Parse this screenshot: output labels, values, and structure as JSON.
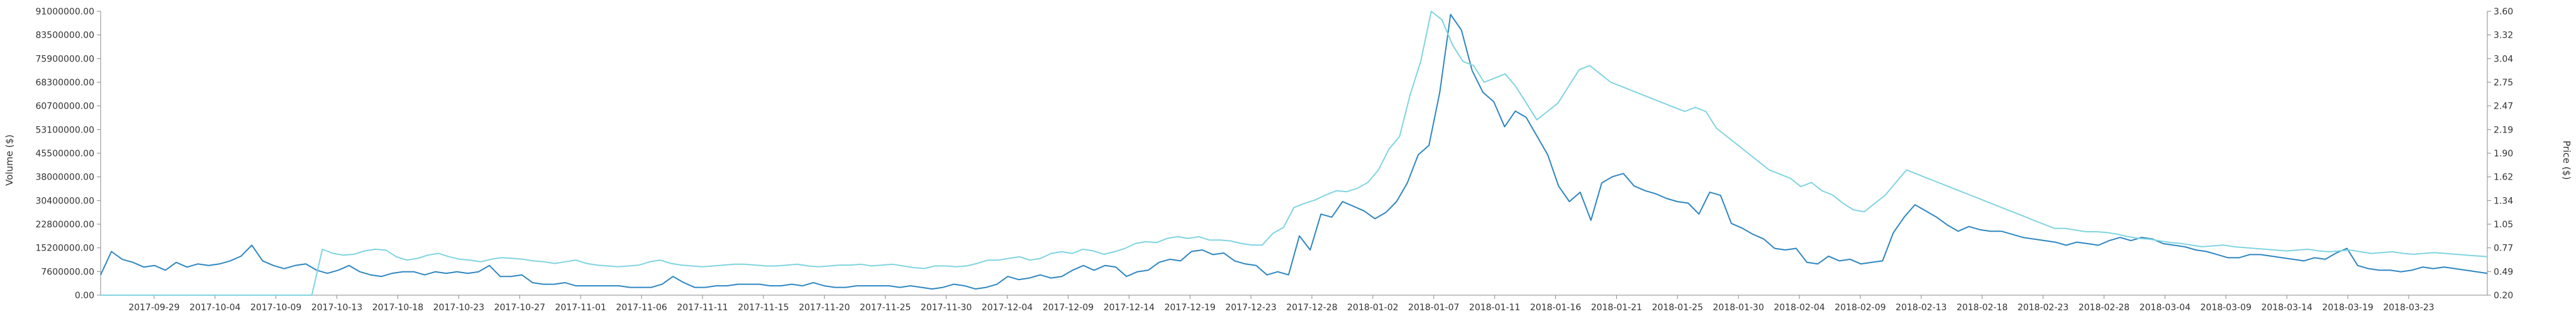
{
  "chart_data": {
    "type": "line",
    "title": "",
    "ylabel_left": "Volume ($)",
    "ylabel_right": "Price ($)",
    "y_left_ticks": [
      "0.00",
      "7600000.00",
      "15200000.00",
      "22800000.00",
      "30400000.00",
      "38000000.00",
      "45500000.00",
      "53100000.00",
      "60700000.00",
      "68300000.00",
      "75900000.00",
      "83500000.00",
      "91000000.00"
    ],
    "y_left_range": [
      0,
      91000000
    ],
    "y_right_ticks": [
      "0.20",
      "0.49",
      "0.77",
      "1.05",
      "1.34",
      "1.62",
      "1.90",
      "2.19",
      "2.47",
      "2.75",
      "3.04",
      "3.32",
      "3.60"
    ],
    "y_right_range": [
      0.2,
      3.6
    ],
    "x_tick_labels": [
      "2017-09-29",
      "2017-10-04",
      "2017-10-09",
      "2017-10-13",
      "2017-10-18",
      "2017-10-23",
      "2017-10-27",
      "2017-11-01",
      "2017-11-06",
      "2017-11-11",
      "2017-11-15",
      "2017-11-20",
      "2017-11-25",
      "2017-11-30",
      "2017-12-04",
      "2017-12-09",
      "2017-12-14",
      "2017-12-19",
      "2017-12-23",
      "2017-12-28",
      "2018-01-02",
      "2018-01-07",
      "2018-01-11",
      "2018-01-16",
      "2018-01-21",
      "2018-01-25",
      "2018-01-30",
      "2018-02-04",
      "2018-02-09",
      "2018-02-13",
      "2018-02-18",
      "2018-02-23",
      "2018-02-28",
      "2018-03-04",
      "2018-03-09",
      "2018-03-14",
      "2018-03-19",
      "2018-03-23"
    ],
    "grid": false,
    "colors": {
      "volume": "#2e86c1",
      "price": "#7fd4e0"
    },
    "series": [
      {
        "axis": "left",
        "color": "#2e86c1",
        "values": [
          6500000,
          14000000,
          11500000,
          10500000,
          9000000,
          9500000,
          8000000,
          10500000,
          9000000,
          10000000,
          9500000,
          10000000,
          11000000,
          12500000,
          16000000,
          11000000,
          9500000,
          8500000,
          9500000,
          10000000,
          8000000,
          7000000,
          8000000,
          9500000,
          7500000,
          6500000,
          6000000,
          7000000,
          7500000,
          7500000,
          6500000,
          7500000,
          7000000,
          7500000,
          7000000,
          7500000,
          9500000,
          6000000,
          6000000,
          6500000,
          4000000,
          3500000,
          3500000,
          4000000,
          3000000,
          3000000,
          3000000,
          3000000,
          3000000,
          2500000,
          2500000,
          2500000,
          3500000,
          6000000,
          4000000,
          2500000,
          2500000,
          3000000,
          3000000,
          3500000,
          3500000,
          3500000,
          3000000,
          3000000,
          3500000,
          3000000,
          4000000,
          3000000,
          2500000,
          2500000,
          3000000,
          3000000,
          3000000,
          3000000,
          2500000,
          3000000,
          2500000,
          2000000,
          2500000,
          3500000,
          3000000,
          2000000,
          2500000,
          3500000,
          6000000,
          5000000,
          5500000,
          6500000,
          5500000,
          6000000,
          8000000,
          9500000,
          8000000,
          9500000,
          9000000,
          6000000,
          7500000,
          8000000,
          10500000,
          11500000,
          11000000,
          14000000,
          14500000,
          13000000,
          13500000,
          11000000,
          10000000,
          9500000,
          6500000,
          7500000,
          6500000,
          19000000,
          14500000,
          26000000,
          25000000,
          30000000,
          28500000,
          27000000,
          24500000,
          26500000,
          30000000,
          36000000,
          45000000,
          48000000,
          65000000,
          90000000,
          85000000,
          72000000,
          65000000,
          62000000,
          54000000,
          59000000,
          57000000,
          51000000,
          45000000,
          35000000,
          30000000,
          33000000,
          24000000,
          36000000,
          38000000,
          39000000,
          35000000,
          33500000,
          32500000,
          31000000,
          30000000,
          29500000,
          26000000,
          33000000,
          32000000,
          23000000,
          21500000,
          19500000,
          18000000,
          15000000,
          14500000,
          15000000,
          10500000,
          10000000,
          12500000,
          11000000,
          11500000,
          10000000,
          10500000,
          11000000,
          20000000,
          25000000,
          29000000,
          27000000,
          25000000,
          22500000,
          20500000,
          22000000,
          21000000,
          20500000,
          20500000,
          19500000,
          18500000,
          18000000,
          17500000,
          17000000,
          16000000,
          17000000,
          16500000,
          16000000,
          17500000,
          18500000,
          17500000,
          18500000,
          18000000,
          16500000,
          16000000,
          15500000,
          14500000,
          14000000,
          13000000,
          12000000,
          12000000,
          13000000,
          13000000,
          12500000,
          12000000,
          11500000,
          11000000,
          12000000,
          11500000,
          13500000,
          15000000,
          9500000,
          8500000,
          8000000,
          8000000,
          7500000,
          8000000,
          9000000,
          8500000,
          9000000,
          8500000,
          8000000,
          7500000,
          7000000
        ]
      },
      {
        "axis": "right",
        "color": "#7fd4e0",
        "values": [
          0.2,
          0.2,
          0.2,
          0.2,
          0.2,
          0.2,
          0.2,
          0.2,
          0.2,
          0.2,
          0.2,
          0.2,
          0.2,
          0.2,
          0.2,
          0.2,
          0.2,
          0.2,
          0.2,
          0.2,
          0.2,
          0.75,
          0.7,
          0.68,
          0.69,
          0.73,
          0.75,
          0.74,
          0.66,
          0.62,
          0.64,
          0.68,
          0.7,
          0.66,
          0.63,
          0.62,
          0.6,
          0.63,
          0.65,
          0.64,
          0.63,
          0.61,
          0.6,
          0.58,
          0.6,
          0.62,
          0.58,
          0.56,
          0.55,
          0.54,
          0.55,
          0.56,
          0.6,
          0.62,
          0.58,
          0.56,
          0.55,
          0.54,
          0.55,
          0.56,
          0.57,
          0.57,
          0.56,
          0.55,
          0.55,
          0.56,
          0.57,
          0.55,
          0.54,
          0.55,
          0.56,
          0.56,
          0.57,
          0.55,
          0.56,
          0.57,
          0.55,
          0.53,
          0.52,
          0.55,
          0.55,
          0.54,
          0.55,
          0.58,
          0.62,
          0.62,
          0.64,
          0.66,
          0.62,
          0.64,
          0.7,
          0.72,
          0.7,
          0.75,
          0.73,
          0.69,
          0.72,
          0.76,
          0.82,
          0.84,
          0.83,
          0.88,
          0.9,
          0.88,
          0.9,
          0.86,
          0.86,
          0.85,
          0.82,
          0.8,
          0.8,
          0.94,
          1.01,
          1.25,
          1.3,
          1.34,
          1.4,
          1.45,
          1.44,
          1.48,
          1.55,
          1.7,
          1.95,
          2.1,
          2.6,
          3.0,
          3.6,
          3.5,
          3.2,
          3.0,
          2.95,
          2.75,
          2.8,
          2.85,
          2.7,
          2.5,
          2.3,
          2.4,
          2.5,
          2.7,
          2.9,
          2.95,
          2.85,
          2.75,
          2.7,
          2.65,
          2.6,
          2.55,
          2.5,
          2.45,
          2.4,
          2.45,
          2.4,
          2.2,
          2.1,
          2.0,
          1.9,
          1.8,
          1.7,
          1.65,
          1.6,
          1.5,
          1.55,
          1.45,
          1.4,
          1.3,
          1.22,
          1.2,
          1.3,
          1.4,
          1.55,
          1.7,
          1.65,
          1.6,
          1.55,
          1.5,
          1.45,
          1.4,
          1.35,
          1.3,
          1.25,
          1.2,
          1.15,
          1.1,
          1.05,
          1.0,
          1.0,
          0.98,
          0.96,
          0.96,
          0.95,
          0.93,
          0.9,
          0.88,
          0.87,
          0.85,
          0.83,
          0.82,
          0.8,
          0.78,
          0.79,
          0.8,
          0.78,
          0.77,
          0.76,
          0.75,
          0.74,
          0.73,
          0.74,
          0.75,
          0.73,
          0.72,
          0.73,
          0.74,
          0.72,
          0.7,
          0.71,
          0.72,
          0.7,
          0.69,
          0.7,
          0.71,
          0.7,
          0.69,
          0.68,
          0.67,
          0.66
        ]
      }
    ]
  }
}
